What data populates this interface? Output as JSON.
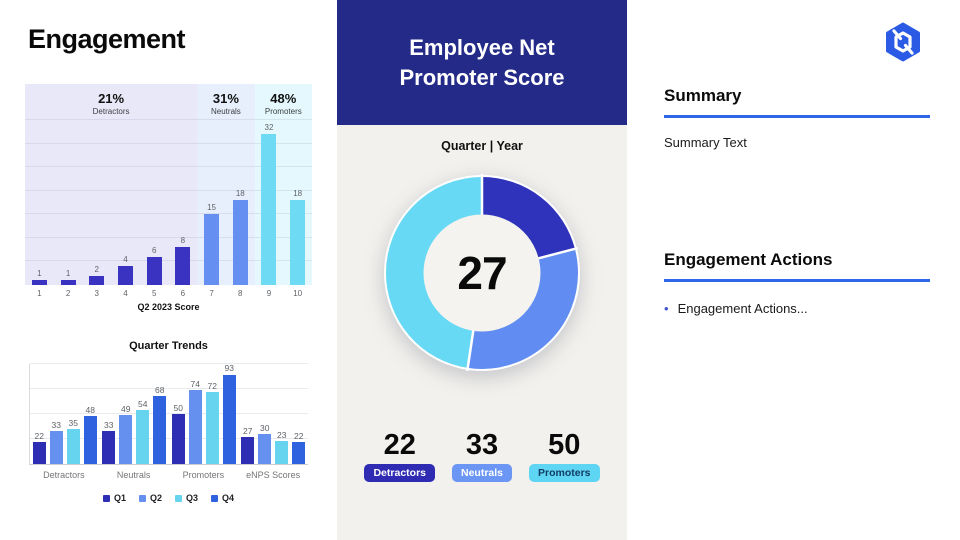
{
  "slide": {
    "title": "Engagement"
  },
  "center": {
    "header_title": "Employee Net Promoter Score",
    "period_label": "Quarter | Year",
    "stats": [
      {
        "value": "22",
        "label": "Detractors",
        "badge_bg": "#2f2cb3",
        "badge_text": "#ffffff"
      },
      {
        "value": "33",
        "label": "Neutrals",
        "badge_bg": "#6b96f3",
        "badge_text": "#ffffff"
      },
      {
        "value": "50",
        "label": "Promoters",
        "badge_bg": "#5ed5f3",
        "badge_text": "#123c63"
      }
    ]
  },
  "right": {
    "logo_icon": "hexagon-logo",
    "summary_heading": "Summary",
    "summary_body": "Summary Text",
    "actions_heading": "Engagement Actions",
    "actions_bullet": "Engagement Actions...",
    "accent_color": "#2e66e8",
    "bullet_color": "#4356cc",
    "logo_color": "#2b5be4"
  },
  "colors": {
    "header_bg": "#242a87",
    "panel_bg": "#f2f1ed",
    "donut_hole": "#f4f3ef"
  },
  "chart_data": [
    {
      "type": "bar",
      "name": "score_distribution",
      "xlabel": "Q2 2023 Score",
      "x": [
        "1",
        "2",
        "3",
        "4",
        "5",
        "6",
        "7",
        "8",
        "9",
        "10"
      ],
      "values": [
        1,
        1,
        2,
        4,
        6,
        8,
        15,
        18,
        32,
        18
      ],
      "ylim": [
        0,
        35
      ],
      "grid_step": 5,
      "grid": true,
      "segments": [
        {
          "pct": "21%",
          "label": "Detractors",
          "span": 6,
          "band_color": "#e9e8f8",
          "bar_color": "#3a33c2"
        },
        {
          "pct": "31%",
          "label": "Neutrals",
          "span": 2,
          "band_color": "#e7eefc",
          "bar_color": "#6590f2"
        },
        {
          "pct": "48%",
          "label": "Promoters",
          "span": 2,
          "band_color": "#e4f8fd",
          "bar_color": "#6edaf3"
        }
      ]
    },
    {
      "type": "bar",
      "name": "quarter_trends",
      "title": "Quarter Trends",
      "categories": [
        "Detractors",
        "Neutrals",
        "Promoters",
        "eNPS Scores"
      ],
      "series": [
        {
          "name": "Q1",
          "color": "#2e2eb4",
          "values": [
            22,
            33,
            50,
            27
          ]
        },
        {
          "name": "Q2",
          "color": "#6590f0",
          "values": [
            33,
            49,
            74,
            30
          ]
        },
        {
          "name": "Q3",
          "color": "#66d3ef",
          "values": [
            35,
            54,
            72,
            23
          ]
        },
        {
          "name": "Q4",
          "color": "#2e62df",
          "values": [
            48,
            68,
            93,
            22
          ]
        }
      ],
      "ylim": [
        0,
        100
      ],
      "grid_step": 25,
      "grid": true,
      "legend_position": "bottom"
    },
    {
      "type": "pie",
      "name": "enps_donut",
      "center_value": "27",
      "slices": [
        {
          "label": "Detractors",
          "value": 22,
          "color": "#2f33bb"
        },
        {
          "label": "Neutrals",
          "value": 33,
          "color": "#618df2"
        },
        {
          "label": "Promoters",
          "value": 50,
          "color": "#67d9f5"
        }
      ]
    }
  ]
}
